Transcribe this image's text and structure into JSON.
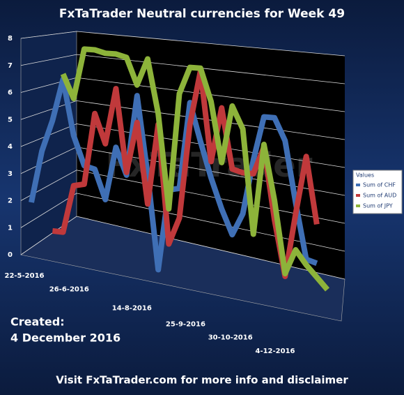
{
  "chart_data": {
    "type": "line",
    "title": "FxTaTrader  Neutral currencies for Week 49",
    "annotations": [
      "Created:",
      "4 December 2016",
      "Visit FxTaTrader.com for more info and disclaimer"
    ],
    "watermark": "FxTaTrader",
    "legend_title": "Values",
    "categories": [
      "22-5-2016",
      null,
      null,
      null,
      null,
      "26-6-2016",
      null,
      null,
      null,
      null,
      null,
      null,
      "14-8-2016",
      null,
      null,
      null,
      null,
      null,
      "25-9-2016",
      null,
      null,
      null,
      null,
      "30-10-2016",
      null,
      null,
      null,
      null,
      "4-12-2016"
    ],
    "series": [
      {
        "name": "Sum of CHF",
        "color": "#3f6fb5",
        "values": [
          2,
          4,
          5.2,
          6.8,
          4.7,
          3.6,
          3.5,
          2.4,
          4.4,
          3.4,
          6.4,
          3.5,
          0,
          3,
          3.1,
          6.3,
          4.9,
          3.6,
          2.5,
          1.6,
          2.4,
          4.4,
          6,
          6,
          5.2,
          3,
          1,
          0.9,
          null
        ]
      },
      {
        "name": "Sum of AUD",
        "color": "#c0393b",
        "values": [
          null,
          null,
          1,
          1,
          2.8,
          2.9,
          5.6,
          4.5,
          6.6,
          3.5,
          5.4,
          2.4,
          5.4,
          1,
          2,
          5.5,
          7.5,
          4.2,
          6.2,
          4,
          3.9,
          3.9,
          4.9,
          2.3,
          0.3,
          2.6,
          4.7,
          2.3,
          null
        ]
      },
      {
        "name": "Sum of JPY",
        "color": "#8db33a",
        "values": [
          null,
          null,
          null,
          7,
          6.1,
          8,
          8,
          7.9,
          7.9,
          7.8,
          6.8,
          7.8,
          5.8,
          2.3,
          6.6,
          7.6,
          7.6,
          6.4,
          4.2,
          6.3,
          5.5,
          1.7,
          5,
          3,
          0.4,
          1.3,
          0.8,
          0.4,
          0
        ]
      }
    ],
    "ylim": [
      0,
      8
    ],
    "yticks": [
      0,
      1,
      2,
      3,
      4,
      5,
      6,
      7,
      8
    ],
    "grid": true,
    "legend": "right"
  }
}
